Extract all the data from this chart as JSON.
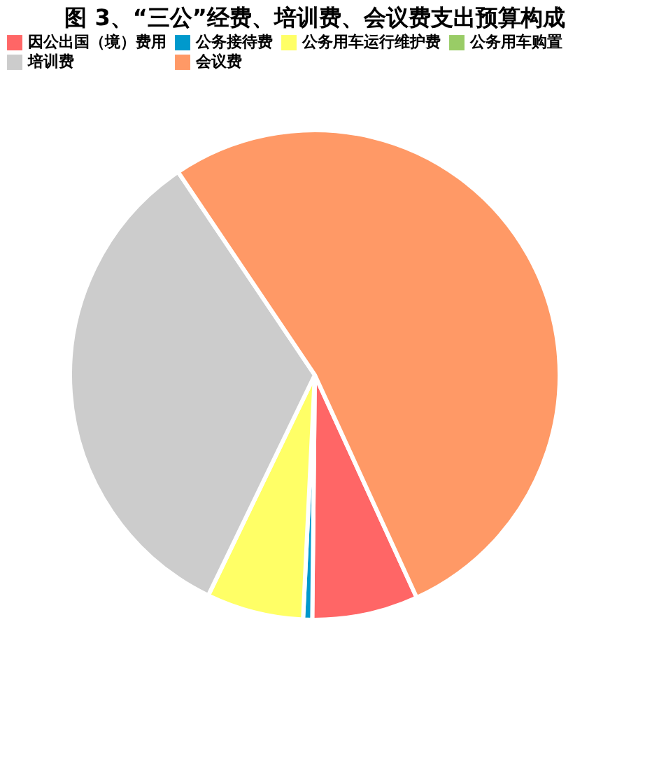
{
  "chart_data": {
    "type": "pie",
    "title": "图 3、“三公”经费、培训费、会议费支出预算构成",
    "categories": [
      "因公出国（境）费用",
      "公务接待费",
      "公务用车运行维护费",
      "公务用车购置",
      "培训费",
      "会议费"
    ],
    "values": [
      7.0,
      0.6,
      6.4,
      0,
      33.4,
      52.6
    ],
    "colors": [
      "#ff6666",
      "#0099cc",
      "#ffff66",
      "#99cc66",
      "#cccccc",
      "#ff9966"
    ],
    "legend": "top"
  }
}
